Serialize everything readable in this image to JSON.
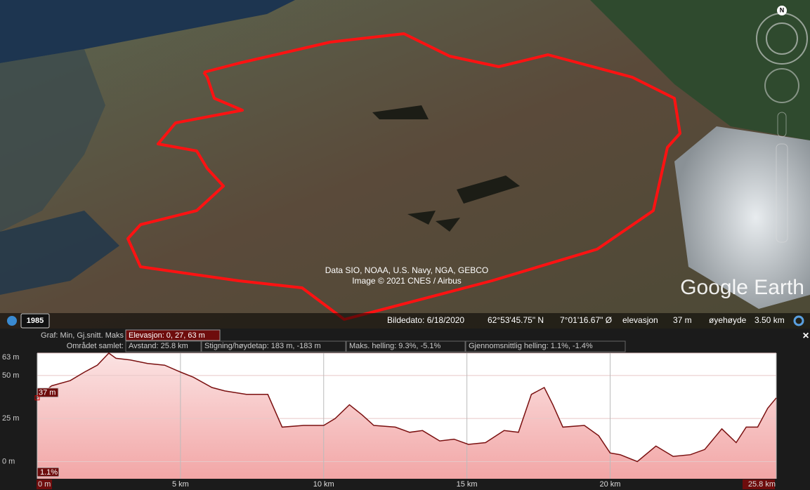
{
  "map": {
    "attribution_line_1": "Data SIO, NOAA, U.S. Navy, NGA, GEBCO",
    "attribution_line_2": "Image © 2021 CNES / Airbus",
    "logo": "Google Earth",
    "compass": "N",
    "historical_year": "1985"
  },
  "status_bar": {
    "image_date": "Bildedato: 6/18/2020",
    "latitude": "62°53'45.75\" N",
    "longitude": "7°01'16.67\" Ø",
    "elevation_label": "elevasjon",
    "elevation_value": "37 m",
    "eye_altitude_label": "øyehøyde",
    "eye_altitude_value": "3.50 km"
  },
  "profile_header": {
    "graph_label": "Graf: Min, Gj.snitt. Maks",
    "elevation": "Elevasjon: 0, 27, 63 m",
    "area_total": "Området samlet:",
    "distance": "Avstand: 25.8 km",
    "climb": "Stigning/høydetap: 183 m, -183 m",
    "max_slope": "Maks. helling: 9.3%, -5.1%",
    "avg_slope": "Gjennomsnittlig helling: 1.1%, -1.4%",
    "close": "×"
  },
  "chart_data": {
    "type": "line",
    "x": [
      0,
      0.5,
      1.15,
      1.65,
      2.1,
      2.5,
      2.75,
      3.25,
      3.85,
      4.45,
      5,
      5.45,
      6.1,
      6.55,
      7.3,
      8.05,
      8.55,
      9.3,
      10,
      10.4,
      10.9,
      11.35,
      11.75,
      12.5,
      13,
      13.45,
      14.05,
      14.55,
      15.05,
      15.65,
      16.3,
      16.8,
      17.25,
      17.7,
      18,
      18.35,
      19.1,
      19.6,
      20,
      20.35,
      20.95,
      21.6,
      22.2,
      22.8,
      23.3,
      23.9,
      24.4,
      24.75,
      25.15,
      25.5,
      25.8
    ],
    "series": [
      {
        "color": "#7a1010",
        "values": [
          37,
          44,
          47,
          52,
          56,
          63,
          60,
          59,
          57,
          56,
          52,
          49,
          43,
          41,
          39,
          39,
          20,
          21,
          21,
          25,
          33,
          27,
          21,
          20,
          17,
          18,
          12,
          13,
          10,
          11,
          18,
          17,
          39,
          43,
          33,
          20,
          21,
          15,
          5,
          4,
          0,
          9,
          3,
          4,
          7,
          19,
          11,
          20,
          20,
          31,
          37
        ]
      }
    ],
    "xlim": [
      0,
      25.8
    ],
    "ylim": [
      -10,
      63
    ],
    "xticks": [
      {
        "value": 0,
        "label": "0 m"
      },
      {
        "value": 5,
        "label": "5 km"
      },
      {
        "value": 10,
        "label": "10 km"
      },
      {
        "value": 15,
        "label": "15 km"
      },
      {
        "value": 20,
        "label": "20 km"
      },
      {
        "value": 25.8,
        "label": "25.8 km"
      }
    ],
    "yticks": [
      {
        "value": 63,
        "label": "63 m"
      },
      {
        "value": 50,
        "label": "50 m"
      },
      {
        "value": 25,
        "label": "25 m"
      },
      {
        "value": 0,
        "label": "0 m"
      }
    ],
    "grid": true,
    "annotations": [
      "37 m",
      "1.1%"
    ]
  }
}
